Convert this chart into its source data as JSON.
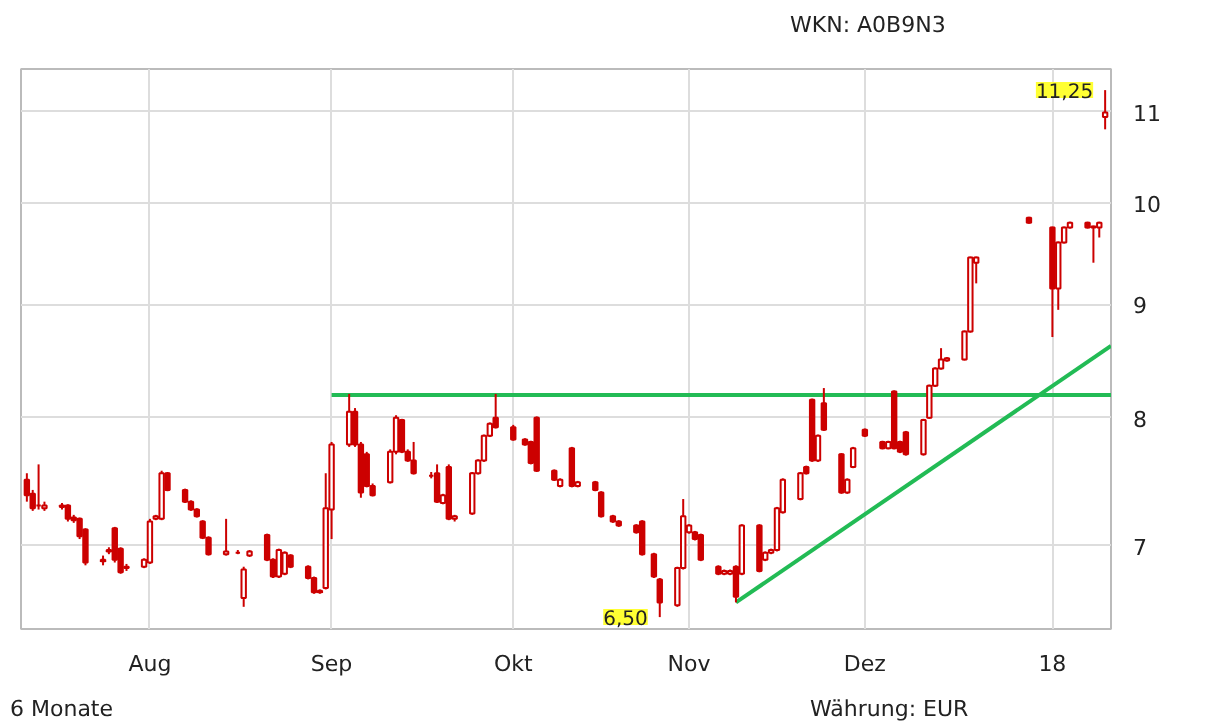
{
  "chart_data": {
    "type": "candlestick",
    "color": "#cc0000",
    "x": [
      "2017-07-11",
      "2017-07-12",
      "2017-07-13",
      "2017-07-14",
      "2017-07-17",
      "2017-07-18",
      "2017-07-19",
      "2017-07-20",
      "2017-07-21",
      "2017-07-24",
      "2017-07-25",
      "2017-07-26",
      "2017-07-27",
      "2017-07-28",
      "2017-07-31",
      "2017-08-01",
      "2017-08-02",
      "2017-08-03",
      "2017-08-04",
      "2017-08-07",
      "2017-08-08",
      "2017-08-09",
      "2017-08-10",
      "2017-08-11",
      "2017-08-14",
      "2017-08-16",
      "2017-08-17",
      "2017-08-18",
      "2017-08-21",
      "2017-08-22",
      "2017-08-23",
      "2017-08-24",
      "2017-08-25",
      "2017-08-28",
      "2017-08-29",
      "2017-08-30",
      "2017-08-31",
      "2017-09-01",
      "2017-09-04",
      "2017-09-05",
      "2017-09-06",
      "2017-09-07",
      "2017-09-08",
      "2017-09-11",
      "2017-09-12",
      "2017-09-13",
      "2017-09-14",
      "2017-09-15",
      "2017-09-18",
      "2017-09-19",
      "2017-09-20",
      "2017-09-21",
      "2017-09-22",
      "2017-09-25",
      "2017-09-26",
      "2017-09-27",
      "2017-09-28",
      "2017-09-29",
      "2017-10-02",
      "2017-10-04",
      "2017-10-05",
      "2017-10-06",
      "2017-10-09",
      "2017-10-10",
      "2017-10-12",
      "2017-10-13",
      "2017-10-16",
      "2017-10-17",
      "2017-10-19",
      "2017-10-20",
      "2017-10-23",
      "2017-10-24",
      "2017-10-26",
      "2017-10-27",
      "2017-10-30",
      "2017-10-31",
      "2017-11-01",
      "2017-11-02",
      "2017-11-03",
      "2017-11-06",
      "2017-11-07",
      "2017-11-08",
      "2017-11-09",
      "2017-11-10",
      "2017-11-13",
      "2017-11-14",
      "2017-11-15",
      "2017-11-16",
      "2017-11-17",
      "2017-11-20",
      "2017-11-21",
      "2017-11-22",
      "2017-11-23",
      "2017-11-24",
      "2017-11-27",
      "2017-11-28",
      "2017-11-29",
      "2017-12-01",
      "2017-12-04",
      "2017-12-05",
      "2017-12-06",
      "2017-12-07",
      "2017-12-08",
      "2017-12-11",
      "2017-12-12",
      "2017-12-13",
      "2017-12-14",
      "2017-12-15",
      "2017-12-18",
      "2017-12-19",
      "2017-12-20",
      "2017-12-29",
      "2018-01-02",
      "2018-01-03",
      "2018-01-04",
      "2018-01-05",
      "2018-01-08",
      "2018-01-09",
      "2018-01-10",
      "2018-01-11"
    ],
    "ohlc": [
      [
        7.5,
        7.55,
        7.33,
        7.38
      ],
      [
        7.39,
        7.42,
        7.26,
        7.28
      ],
      [
        7.3,
        7.62,
        7.27,
        7.3
      ],
      [
        7.28,
        7.33,
        7.26,
        7.3
      ],
      [
        7.3,
        7.32,
        7.27,
        7.29
      ],
      [
        7.3,
        7.31,
        7.18,
        7.2
      ],
      [
        7.21,
        7.23,
        7.17,
        7.19
      ],
      [
        7.2,
        7.21,
        7.05,
        7.07
      ],
      [
        7.12,
        7.13,
        6.86,
        6.88
      ],
      [
        6.9,
        6.93,
        6.86,
        6.89
      ],
      [
        6.97,
        6.99,
        6.94,
        6.96
      ],
      [
        7.13,
        7.14,
        6.88,
        6.9
      ],
      [
        6.98,
        6.99,
        6.8,
        6.81
      ],
      [
        6.84,
        6.87,
        6.82,
        6.85
      ],
      [
        6.85,
        6.91,
        6.84,
        6.9
      ],
      [
        6.88,
        7.2,
        6.87,
        7.18
      ],
      [
        7.2,
        7.23,
        7.19,
        7.22
      ],
      [
        7.2,
        7.57,
        7.19,
        7.55
      ],
      [
        7.55,
        7.56,
        7.41,
        7.42
      ],
      [
        7.42,
        7.43,
        7.32,
        7.33
      ],
      [
        7.33,
        7.34,
        7.26,
        7.27
      ],
      [
        7.27,
        7.28,
        7.21,
        7.22
      ],
      [
        7.18,
        7.19,
        7.05,
        7.06
      ],
      [
        7.06,
        7.07,
        6.93,
        6.94
      ],
      [
        6.94,
        7.2,
        6.93,
        6.96
      ],
      [
        6.95,
        6.97,
        6.94,
        6.95
      ],
      [
        6.63,
        6.85,
        6.57,
        6.83
      ],
      [
        6.93,
        6.97,
        6.92,
        6.96
      ],
      [
        7.08,
        7.09,
        6.89,
        6.9
      ],
      [
        6.9,
        6.91,
        6.77,
        6.78
      ],
      [
        6.78,
        6.98,
        6.77,
        6.97
      ],
      [
        6.8,
        6.96,
        6.79,
        6.95
      ],
      [
        6.93,
        6.94,
        6.84,
        6.85
      ],
      [
        6.85,
        6.86,
        6.76,
        6.77
      ],
      [
        6.77,
        6.78,
        6.66,
        6.67
      ],
      [
        6.67,
        6.69,
        6.66,
        6.68
      ],
      [
        6.7,
        7.55,
        6.69,
        7.28
      ],
      [
        7.27,
        7.8,
        7.05,
        7.78
      ],
      [
        7.78,
        8.2,
        7.76,
        8.05
      ],
      [
        8.05,
        8.08,
        7.76,
        7.78
      ],
      [
        7.78,
        7.8,
        7.36,
        7.4
      ],
      [
        7.7,
        7.72,
        7.44,
        7.45
      ],
      [
        7.45,
        7.47,
        7.37,
        7.38
      ],
      [
        7.48,
        7.74,
        7.47,
        7.72
      ],
      [
        7.72,
        8.02,
        7.7,
        8.0
      ],
      [
        7.98,
        7.99,
        7.71,
        7.72
      ],
      [
        7.72,
        7.74,
        7.64,
        7.65
      ],
      [
        7.65,
        7.8,
        7.54,
        7.55
      ],
      [
        7.53,
        7.56,
        7.51,
        7.53
      ],
      [
        7.55,
        7.62,
        7.32,
        7.33
      ],
      [
        7.32,
        7.39,
        7.31,
        7.38
      ],
      [
        7.6,
        7.62,
        7.19,
        7.2
      ],
      [
        7.2,
        7.23,
        7.18,
        7.22
      ],
      [
        7.24,
        7.56,
        7.23,
        7.55
      ],
      [
        7.55,
        7.66,
        7.54,
        7.65
      ],
      [
        7.65,
        7.86,
        7.64,
        7.85
      ],
      [
        7.85,
        7.96,
        7.84,
        7.95
      ],
      [
        8.0,
        8.2,
        7.91,
        7.92
      ],
      [
        7.92,
        7.94,
        7.81,
        7.82
      ],
      [
        7.82,
        7.83,
        7.77,
        7.78
      ],
      [
        7.8,
        7.81,
        7.62,
        7.63
      ],
      [
        8.0,
        8.01,
        7.56,
        7.57
      ],
      [
        7.57,
        7.58,
        7.49,
        7.5
      ],
      [
        7.45,
        7.51,
        7.44,
        7.5
      ],
      [
        7.75,
        7.76,
        7.44,
        7.45
      ],
      [
        7.45,
        7.49,
        7.44,
        7.48
      ],
      [
        7.48,
        7.49,
        7.41,
        7.42
      ],
      [
        7.4,
        7.41,
        7.21,
        7.22
      ],
      [
        7.22,
        7.23,
        7.17,
        7.18
      ],
      [
        7.18,
        7.19,
        7.14,
        7.15
      ],
      [
        7.15,
        7.16,
        7.09,
        7.1
      ],
      [
        7.18,
        7.19,
        6.93,
        6.94
      ],
      [
        6.94,
        6.95,
        6.77,
        6.78
      ],
      [
        6.76,
        6.77,
        6.5,
        6.6
      ],
      [
        6.58,
        6.85,
        6.57,
        6.84
      ],
      [
        6.84,
        7.35,
        6.83,
        7.22
      ],
      [
        7.1,
        7.16,
        7.09,
        7.15
      ],
      [
        7.1,
        7.11,
        7.04,
        7.05
      ],
      [
        7.08,
        7.09,
        6.89,
        6.9
      ],
      [
        6.85,
        6.86,
        6.79,
        6.8
      ],
      [
        6.8,
        6.83,
        6.79,
        6.82
      ],
      [
        6.8,
        6.83,
        6.79,
        6.82
      ],
      [
        6.85,
        6.86,
        6.6,
        6.64
      ],
      [
        6.8,
        7.16,
        6.79,
        7.15
      ],
      [
        7.15,
        7.16,
        6.81,
        6.82
      ],
      [
        6.9,
        6.96,
        6.89,
        6.95
      ],
      [
        6.95,
        6.98,
        6.94,
        6.97
      ],
      [
        6.97,
        7.29,
        6.96,
        7.28
      ],
      [
        7.25,
        7.51,
        7.24,
        7.5
      ],
      [
        7.35,
        7.56,
        7.34,
        7.55
      ],
      [
        7.6,
        7.61,
        7.54,
        7.55
      ],
      [
        8.15,
        8.16,
        7.64,
        7.65
      ],
      [
        7.65,
        7.86,
        7.64,
        7.85
      ],
      [
        8.12,
        8.25,
        7.89,
        7.9
      ],
      [
        7.7,
        7.71,
        7.39,
        7.4
      ],
      [
        7.4,
        7.51,
        7.39,
        7.5
      ],
      [
        7.6,
        7.76,
        7.59,
        7.75
      ],
      [
        7.9,
        7.91,
        7.84,
        7.85
      ],
      [
        7.8,
        7.81,
        7.74,
        7.75
      ],
      [
        7.75,
        7.81,
        7.74,
        7.8
      ],
      [
        8.22,
        8.23,
        7.74,
        7.75
      ],
      [
        7.8,
        7.81,
        7.71,
        7.72
      ],
      [
        7.88,
        7.89,
        7.69,
        7.7
      ],
      [
        7.7,
        7.99,
        7.69,
        7.98
      ],
      [
        8.0,
        8.28,
        7.99,
        8.27
      ],
      [
        8.27,
        8.43,
        8.26,
        8.42
      ],
      [
        8.42,
        8.6,
        8.41,
        8.5
      ],
      [
        8.49,
        8.52,
        8.48,
        8.51
      ],
      [
        8.5,
        8.76,
        8.49,
        8.75
      ],
      [
        8.75,
        9.46,
        8.74,
        9.45
      ],
      [
        9.4,
        9.46,
        9.2,
        9.45
      ],
      [
        9.85,
        9.86,
        9.79,
        9.8
      ],
      [
        9.75,
        9.76,
        8.7,
        9.15
      ],
      [
        9.15,
        9.61,
        8.95,
        9.6
      ],
      [
        9.6,
        9.76,
        9.59,
        9.75
      ],
      [
        9.75,
        9.81,
        9.74,
        9.8
      ],
      [
        9.8,
        9.81,
        9.74,
        9.75
      ],
      [
        9.75,
        9.77,
        9.4,
        9.76
      ],
      [
        9.75,
        9.81,
        9.65,
        9.8
      ],
      [
        10.94,
        11.25,
        10.8,
        10.99
      ]
    ],
    "series": [
      {
        "type": "line",
        "color": "#22bb55",
        "x": [
          "2017-09-01",
          "2018-01-12"
        ],
        "values": [
          8.19,
          8.19
        ]
      },
      {
        "type": "line",
        "color": "#22bb55",
        "x": [
          "2017-11-09",
          "2018-01-12"
        ],
        "values": [
          6.6,
          8.62
        ]
      }
    ],
    "xlim": [
      "2017-07-10",
      "2018-01-12"
    ],
    "xticks": [
      {
        "value": "2017-08-01",
        "label": "Aug"
      },
      {
        "value": "2017-09-01",
        "label": "Sep"
      },
      {
        "value": "2017-10-02",
        "label": "Okt"
      },
      {
        "value": "2017-11-01",
        "label": "Nov"
      },
      {
        "value": "2017-12-01",
        "label": "Dez"
      },
      {
        "value": "2018-01-02",
        "label": "18"
      }
    ],
    "ylim": [
      6.42,
      11.5
    ],
    "yticks": [
      7,
      8,
      9,
      10,
      11
    ],
    "log": "y",
    "grid": true,
    "annotations": [
      "WKN: A0B9N3",
      "6 Monate",
      "Währung: EUR",
      {
        "text": "6,50",
        "x": "2017-10-27",
        "y": 6.5
      },
      {
        "text": "11,25",
        "x": "2018-01-11",
        "y": 11.25
      }
    ]
  }
}
